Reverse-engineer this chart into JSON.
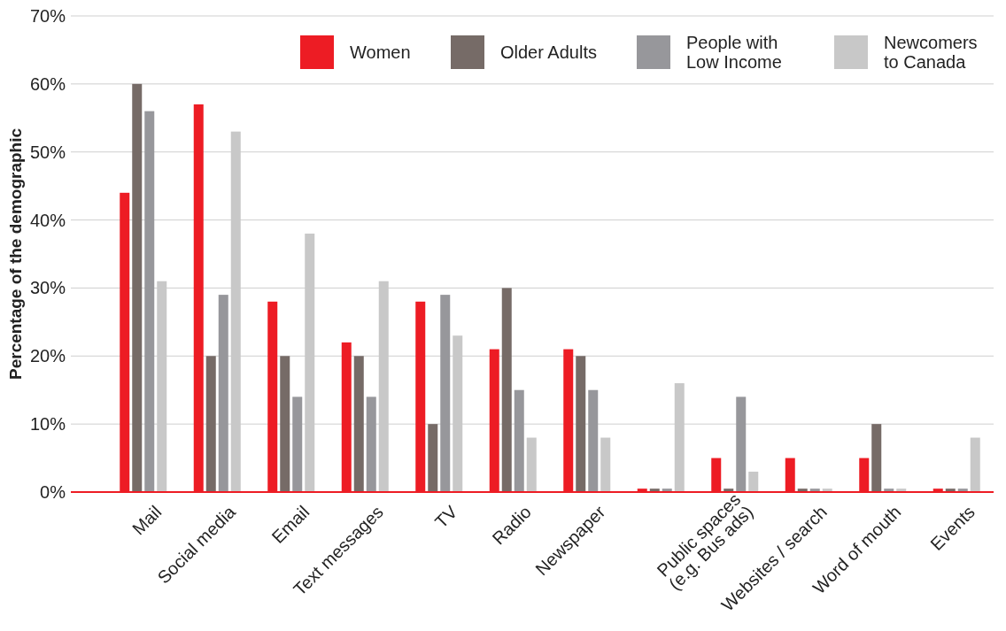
{
  "chart_data": {
    "type": "bar",
    "ylabel": "Percentage of the demographic",
    "categories": [
      "Mail",
      "Social media",
      "Email",
      "Text messages",
      "TV",
      "Radio",
      "Newspaper",
      null,
      "Public spaces (e.g. Bus ads)",
      "Websites / search",
      "Word of mouth",
      "Events"
    ],
    "series": [
      {
        "name": "Women",
        "color": "#ed1c24",
        "values": [
          44,
          57,
          28,
          22,
          28,
          21,
          21,
          0.5,
          5,
          5,
          5,
          0.5
        ]
      },
      {
        "name": "Older Adults",
        "color": "#766b67",
        "values": [
          60,
          20,
          20,
          20,
          10,
          30,
          20,
          0.5,
          0.5,
          0.5,
          10,
          0.5
        ]
      },
      {
        "name": "People with Low Income",
        "color": "#97979b",
        "values": [
          56,
          29,
          14,
          14,
          29,
          15,
          15,
          0.5,
          14,
          0.5,
          0.5,
          0.5
        ]
      },
      {
        "name": "Newcomers to Canada",
        "color": "#c8c8c8",
        "values": [
          31,
          53,
          38,
          31,
          23,
          8,
          8,
          16,
          3,
          0.5,
          0.5,
          8
        ]
      }
    ],
    "ylim": [
      0,
      70
    ],
    "yticks": [
      {
        "value": 0,
        "label": "0%"
      },
      {
        "value": 10,
        "label": "10%"
      },
      {
        "value": 20,
        "label": "20%"
      },
      {
        "value": 30,
        "label": "30%"
      },
      {
        "value": 40,
        "label": "40%"
      },
      {
        "value": 50,
        "label": "50%"
      },
      {
        "value": 60,
        "label": "60%"
      },
      {
        "value": 70,
        "label": "70%"
      }
    ],
    "grid": "y",
    "legend": "top right"
  }
}
